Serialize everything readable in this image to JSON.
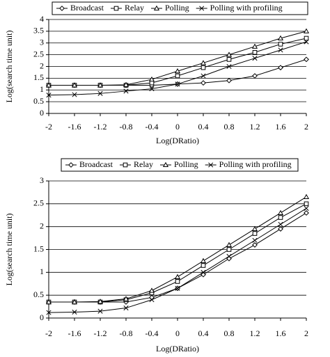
{
  "chart_data": [
    {
      "type": "line",
      "xlabel": "Log(DRatio)",
      "ylabel": "Log(search time unit)",
      "x": [
        -2,
        -1.6,
        -1.2,
        -0.8,
        -0.4,
        0,
        0.4,
        0.8,
        1.2,
        1.6,
        2
      ],
      "xlim": [
        -2,
        2
      ],
      "xticks": [
        -2,
        -1.6,
        -1.2,
        -0.8,
        -0.4,
        0,
        0.4,
        0.8,
        1.2,
        1.6,
        2
      ],
      "ylim": [
        0,
        4
      ],
      "yticks": [
        0,
        0.5,
        1,
        1.5,
        2,
        2.5,
        3,
        3.5,
        4
      ],
      "grid": true,
      "series": [
        {
          "name": "Broadcast",
          "color": "#000000",
          "marker": "diamond",
          "values": [
            1.2,
            1.2,
            1.2,
            1.2,
            1.2,
            1.25,
            1.3,
            1.4,
            1.6,
            1.95,
            2.3
          ]
        },
        {
          "name": "Relay",
          "color": "#000000",
          "marker": "square",
          "values": [
            1.2,
            1.2,
            1.2,
            1.2,
            1.3,
            1.6,
            1.95,
            2.3,
            2.6,
            2.95,
            3.2
          ]
        },
        {
          "name": "Polling",
          "color": "#000000",
          "marker": "triangle",
          "values": [
            1.2,
            1.2,
            1.2,
            1.22,
            1.45,
            1.8,
            2.15,
            2.5,
            2.85,
            3.2,
            3.5
          ]
        },
        {
          "name": "Polling with profiling",
          "color": "#000000",
          "marker": "cross",
          "values": [
            0.78,
            0.8,
            0.85,
            0.95,
            1.05,
            1.25,
            1.6,
            2.0,
            2.35,
            2.7,
            3.05
          ]
        }
      ]
    },
    {
      "type": "line",
      "xlabel": "Log(DRatio)",
      "ylabel": "Log(search time unit)",
      "x": [
        -2,
        -1.6,
        -1.2,
        -0.8,
        -0.4,
        0,
        0.4,
        0.8,
        1.2,
        1.6,
        2
      ],
      "xlim": [
        -2,
        2
      ],
      "xticks": [
        -2,
        -1.6,
        -1.2,
        -0.8,
        -0.4,
        0,
        0.4,
        0.8,
        1.2,
        1.6,
        2
      ],
      "ylim": [
        0,
        3
      ],
      "yticks": [
        0,
        0.5,
        1,
        1.5,
        2,
        2.5,
        3
      ],
      "grid": true,
      "series": [
        {
          "name": "Broadcast",
          "color": "#000000",
          "marker": "diamond",
          "values": [
            0.35,
            0.35,
            0.35,
            0.35,
            0.45,
            0.65,
            0.95,
            1.3,
            1.6,
            1.95,
            2.3
          ]
        },
        {
          "name": "Relay",
          "color": "#000000",
          "marker": "square",
          "values": [
            0.35,
            0.35,
            0.35,
            0.4,
            0.55,
            0.8,
            1.15,
            1.5,
            1.85,
            2.2,
            2.5
          ]
        },
        {
          "name": "Polling",
          "color": "#000000",
          "marker": "triangle",
          "values": [
            0.35,
            0.35,
            0.36,
            0.42,
            0.6,
            0.9,
            1.25,
            1.6,
            1.95,
            2.3,
            2.65
          ]
        },
        {
          "name": "Polling with profiling",
          "color": "#000000",
          "marker": "cross",
          "values": [
            0.12,
            0.13,
            0.15,
            0.22,
            0.4,
            0.65,
            1.0,
            1.35,
            1.7,
            2.05,
            2.4
          ]
        }
      ]
    }
  ]
}
